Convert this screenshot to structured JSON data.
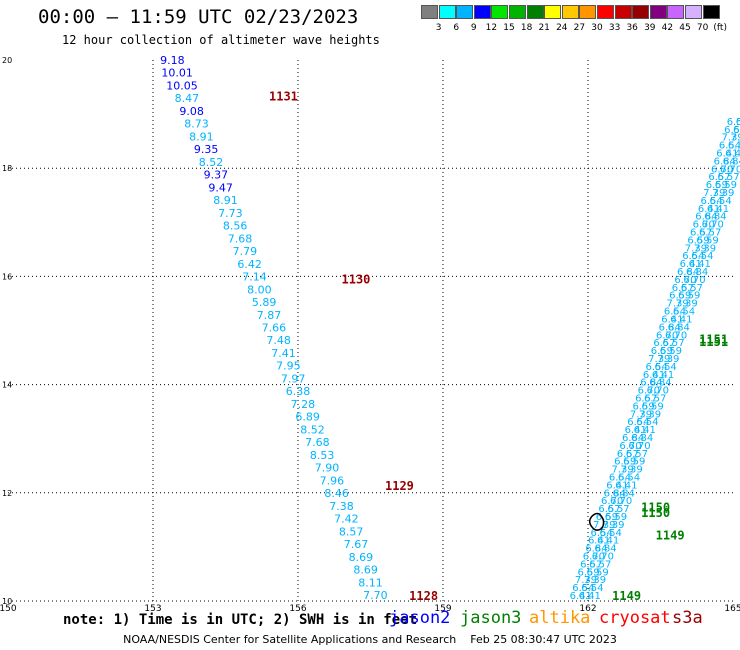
{
  "header": {
    "title": "00:00 – 11:59 UTC 02/23/2023",
    "subtitle": "12 hour collection of altimeter wave heights"
  },
  "scale": {
    "colors": [
      "#808080",
      "#00ffff",
      "#00b4ff",
      "#0000ff",
      "#00e600",
      "#00b400",
      "#008000",
      "#ffff00",
      "#ffc800",
      "#ff9600",
      "#ff0000",
      "#c80000",
      "#960000",
      "#800080",
      "#c864ff",
      "#d8b0ff",
      "#000000"
    ],
    "labels": [
      "3",
      "6",
      "9",
      "12",
      "15",
      "18",
      "21",
      "24",
      "27",
      "30",
      "33",
      "36",
      "39",
      "42",
      "45",
      "70",
      "(ft)"
    ]
  },
  "note": "note: 1) Time is in UTC; 2) SWH is in feet",
  "satellites": [
    {
      "name": "jason2",
      "color": "#0000ff"
    },
    {
      "name": "jason3",
      "color": "#008000"
    },
    {
      "name": "altika",
      "color": "#ff9600"
    },
    {
      "name": "cryosat",
      "color": "#ff0000"
    },
    {
      "name": "s3a",
      "color": "#960000"
    }
  ],
  "footer": "NOAA/NESDIS Center for Satellite Applications and Research    Feb 25 08:30:47 UTC 2023",
  "chart_data": {
    "type": "scatter",
    "xlim": [
      150,
      165
    ],
    "ylim": [
      10,
      20
    ],
    "x_ticks": [
      150,
      153,
      156,
      159,
      162,
      165
    ],
    "y_ticks": [
      10,
      12,
      14,
      16,
      18,
      20
    ],
    "grid": true,
    "passes": [
      {
        "satellite": "jason2",
        "end": [
          153.4,
          20.0
        ],
        "start": [
          157.6,
          10.0
        ],
        "times": [
          {
            "label": "1131",
            "x": 155.4,
            "y": 19.25,
            "color": "#960000"
          },
          {
            "label": "1130",
            "x": 156.9,
            "y": 15.87,
            "color": "#960000"
          },
          {
            "label": "1129",
            "x": 157.8,
            "y": 12.05,
            "color": "#960000"
          },
          {
            "label": "1128",
            "x": 158.3,
            "y": 10.02,
            "color": "#960000"
          }
        ],
        "values": [
          {
            "v": "9.18",
            "c": "#0000ff"
          },
          {
            "v": "10.01",
            "c": "#0000ff"
          },
          {
            "v": "10.05",
            "c": "#0000ff"
          },
          {
            "v": "8.47",
            "c": "#00b4ff"
          },
          {
            "v": "9.08",
            "c": "#0000ff"
          },
          {
            "v": "8.73",
            "c": "#00b4ff"
          },
          {
            "v": "8.91",
            "c": "#00b4ff"
          },
          {
            "v": "9.35",
            "c": "#0000ff"
          },
          {
            "v": "8.52",
            "c": "#00b4ff"
          },
          {
            "v": "9.37",
            "c": "#0000ff"
          },
          {
            "v": "9.47",
            "c": "#0000ff"
          },
          {
            "v": "8.91",
            "c": "#00b4ff"
          },
          {
            "v": "7.73",
            "c": "#00b4ff"
          },
          {
            "v": "8.56",
            "c": "#00b4ff"
          },
          {
            "v": "7.68",
            "c": "#00b4ff"
          },
          {
            "v": "7.79",
            "c": "#00b4ff"
          },
          {
            "v": "6.42",
            "c": "#00b4ff"
          },
          {
            "v": "7.14",
            "c": "#00b4ff"
          },
          {
            "v": "8.00",
            "c": "#00b4ff"
          },
          {
            "v": "5.89",
            "c": "#00b4ff"
          },
          {
            "v": "7.87",
            "c": "#00b4ff"
          },
          {
            "v": "7.66",
            "c": "#00b4ff"
          },
          {
            "v": "7.48",
            "c": "#00b4ff"
          },
          {
            "v": "7.41",
            "c": "#00b4ff"
          },
          {
            "v": "7.95",
            "c": "#00b4ff"
          },
          {
            "v": "7.97",
            "c": "#00b4ff"
          },
          {
            "v": "6.38",
            "c": "#00b4ff"
          },
          {
            "v": "7.28",
            "c": "#00b4ff"
          },
          {
            "v": "6.89",
            "c": "#00b4ff"
          },
          {
            "v": "8.52",
            "c": "#00b4ff"
          },
          {
            "v": "7.68",
            "c": "#00b4ff"
          },
          {
            "v": "8.53",
            "c": "#00b4ff"
          },
          {
            "v": "7.90",
            "c": "#00b4ff"
          },
          {
            "v": "7.96",
            "c": "#00b4ff"
          },
          {
            "v": "8.46",
            "c": "#00b4ff"
          },
          {
            "v": "7.38",
            "c": "#00b4ff"
          },
          {
            "v": "7.42",
            "c": "#00b4ff"
          },
          {
            "v": "8.57",
            "c": "#00b4ff"
          },
          {
            "v": "7.67",
            "c": "#00b4ff"
          },
          {
            "v": "8.69",
            "c": "#00b4ff"
          },
          {
            "v": "8.69",
            "c": "#00b4ff"
          },
          {
            "v": "8.11",
            "c": "#00b4ff"
          },
          {
            "v": "7.70",
            "c": "#00b4ff"
          }
        ]
      },
      {
        "satellite": "jason3",
        "start": [
          161.85,
          10.0
        ],
        "end": [
          165.1,
          18.8
        ],
        "times": [
          {
            "label": "1149",
            "x": 162.5,
            "y": 10.02,
            "color": "#008000"
          },
          {
            "label": "1149",
            "x": 163.4,
            "y": 11.14,
            "color": "#008000"
          },
          {
            "label": "1150",
            "x": 163.1,
            "y": 11.65,
            "color": "#008000"
          },
          {
            "label": "1150",
            "x": 163.1,
            "y": 11.55,
            "color": "#008000"
          },
          {
            "label": "1151",
            "x": 164.3,
            "y": 14.76,
            "color": "#008000"
          },
          {
            "label": "1151",
            "x": 164.3,
            "y": 14.71,
            "color": "#008000"
          }
        ],
        "values": [
          {
            "v": "6.41",
            "c": "#00b4ff"
          },
          {
            "v": "6.54",
            "c": "#00b4ff"
          },
          {
            "v": "7.39",
            "c": "#00b4ff"
          },
          {
            "v": "6.59",
            "c": "#00b4ff"
          },
          {
            "v": "6.57",
            "c": "#00b4ff"
          },
          {
            "v": "6.70",
            "c": "#00b4ff"
          },
          {
            "v": "6.84",
            "c": "#00b4ff"
          }
        ]
      }
    ],
    "island": {
      "lon": 162.2,
      "lat": 11.45
    }
  }
}
